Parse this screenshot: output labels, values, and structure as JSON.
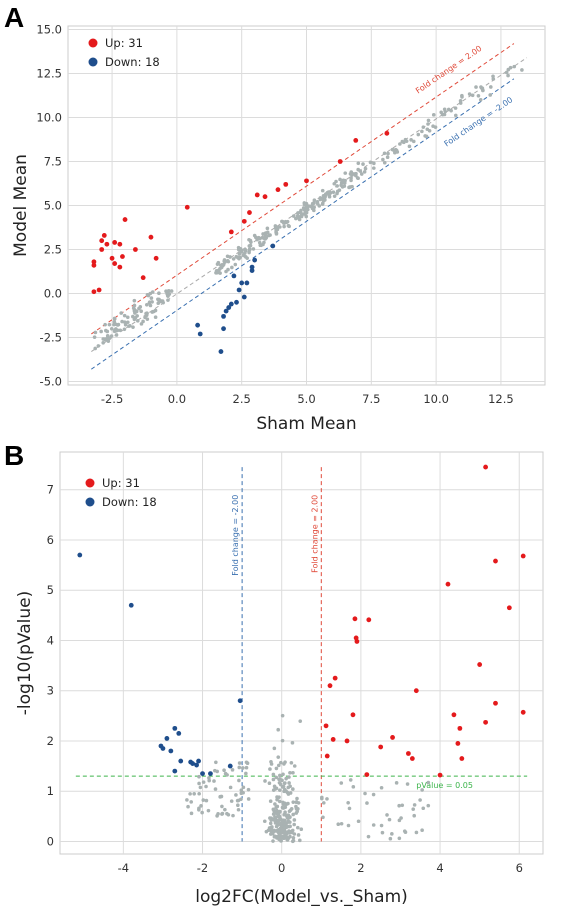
{
  "panels": {
    "a": "A",
    "b": "B"
  },
  "chart_data": [
    {
      "type": "scatter",
      "xlabel": "Sham Mean",
      "ylabel": "Model Mean",
      "xlim": [
        -4.2,
        14.2
      ],
      "ylim": [
        -5.2,
        15.2
      ],
      "xticks": [
        "-2.5",
        "0.0",
        "2.5",
        "5.0",
        "7.5",
        "10.0",
        "12.5"
      ],
      "yticks": [
        "-5.0",
        "-2.5",
        "0.0",
        "2.5",
        "5.0",
        "7.5",
        "10.0",
        "12.5",
        "15.0"
      ],
      "grid": true,
      "legend_position": "top-left",
      "legend": [
        {
          "label": "Up: 31",
          "color": "#e41a1c"
        },
        {
          "label": "Down: 18",
          "color": "#1f4e8c"
        }
      ],
      "lines": [
        {
          "label": "Fold change = 2.00",
          "x": [
            -3.3,
            13.0
          ],
          "y": [
            -2.3,
            14.2
          ],
          "color": "#e04a3a"
        },
        {
          "label": "Fold change = -2.00",
          "x": [
            -3.3,
            13.0
          ],
          "y": [
            -4.3,
            12.2
          ],
          "color": "#3a70b0"
        },
        {
          "label": "",
          "x": [
            -3.3,
            13.5
          ],
          "y": [
            -3.3,
            13.4
          ],
          "color": "#aaaaaa"
        }
      ],
      "series": [
        {
          "name": "Up: 31",
          "color": "#e41a1c",
          "points": [
            [
              -3.2,
              1.8
            ],
            [
              -3.2,
              1.6
            ],
            [
              -3.0,
              0.2
            ],
            [
              -3.2,
              0.1
            ],
            [
              -2.9,
              2.5
            ],
            [
              -2.8,
              3.3
            ],
            [
              -2.9,
              3.0
            ],
            [
              -2.7,
              2.8
            ],
            [
              -2.4,
              2.9
            ],
            [
              -2.2,
              2.8
            ],
            [
              -2.5,
              2.0
            ],
            [
              -2.1,
              2.1
            ],
            [
              -2.2,
              1.5
            ],
            [
              -2.0,
              4.2
            ],
            [
              -1.6,
              2.5
            ],
            [
              -1.3,
              0.9
            ],
            [
              -1.0,
              3.2
            ],
            [
              -0.8,
              2.0
            ],
            [
              -2.4,
              1.7
            ],
            [
              0.4,
              4.9
            ],
            [
              2.1,
              3.5
            ],
            [
              2.6,
              4.1
            ],
            [
              2.8,
              4.6
            ],
            [
              3.1,
              5.6
            ],
            [
              3.4,
              5.5
            ],
            [
              3.9,
              5.9
            ],
            [
              4.2,
              6.2
            ],
            [
              5.0,
              6.4
            ],
            [
              6.3,
              7.5
            ],
            [
              6.9,
              8.7
            ],
            [
              8.1,
              9.1
            ]
          ]
        },
        {
          "name": "Down: 18",
          "color": "#1f4e8c",
          "points": [
            [
              0.8,
              -1.8
            ],
            [
              0.9,
              -2.3
            ],
            [
              1.8,
              -1.3
            ],
            [
              1.9,
              -1.0
            ],
            [
              2.0,
              -0.8
            ],
            [
              1.8,
              -2.0
            ],
            [
              1.7,
              -3.3
            ],
            [
              2.1,
              -0.6
            ],
            [
              2.3,
              -0.5
            ],
            [
              2.4,
              0.2
            ],
            [
              2.5,
              0.6
            ],
            [
              2.6,
              -0.2
            ],
            [
              2.7,
              0.6
            ],
            [
              2.9,
              1.3
            ],
            [
              2.9,
              1.5
            ],
            [
              3.0,
              1.9
            ],
            [
              3.7,
              2.7
            ],
            [
              2.2,
              1.0
            ]
          ]
        }
      ],
      "gray_color": "#a9b2b2"
    },
    {
      "type": "scatter",
      "xlabel": "log2FC(Model_vs._Sham)",
      "ylabel": "-log10(pValue)",
      "xlim": [
        -5.6,
        6.6
      ],
      "ylim": [
        -0.25,
        7.75
      ],
      "xticks": [
        "-4",
        "-2",
        "0",
        "2",
        "4",
        "6"
      ],
      "yticks": [
        "0",
        "1",
        "2",
        "3",
        "4",
        "5",
        "6",
        "7"
      ],
      "grid": true,
      "legend_position": "top-left",
      "legend": [
        {
          "label": "Up: 31",
          "color": "#e41a1c"
        },
        {
          "label": "Down: 18",
          "color": "#1f4e8c"
        }
      ],
      "vlines": [
        {
          "label": "Fold change = -2.00",
          "x": -1.0,
          "color": "#3a70b0"
        },
        {
          "label": "Fold change = 2.00",
          "x": 1.0,
          "color": "#e04a3a"
        }
      ],
      "hline": {
        "label": "pValue = 0.05",
        "y": 1.3,
        "color": "#3cb44b"
      },
      "series": [
        {
          "name": "Up: 31",
          "color": "#e41a1c",
          "points": [
            [
              5.15,
              7.45
            ],
            [
              6.1,
              5.68
            ],
            [
              5.4,
              5.58
            ],
            [
              4.2,
              5.12
            ],
            [
              5.75,
              4.65
            ],
            [
              1.85,
              4.43
            ],
            [
              2.2,
              4.41
            ],
            [
              1.88,
              4.05
            ],
            [
              1.9,
              3.98
            ],
            [
              1.35,
              3.25
            ],
            [
              1.22,
              3.1
            ],
            [
              3.4,
              3.0
            ],
            [
              5.0,
              3.52
            ],
            [
              5.4,
              2.75
            ],
            [
              6.1,
              2.57
            ],
            [
              1.8,
              2.52
            ],
            [
              4.35,
              2.52
            ],
            [
              5.15,
              2.37
            ],
            [
              1.12,
              2.3
            ],
            [
              3.2,
              1.75
            ],
            [
              3.3,
              1.65
            ],
            [
              4.5,
              2.25
            ],
            [
              1.3,
              2.03
            ],
            [
              1.65,
              2.0
            ],
            [
              2.5,
              1.88
            ],
            [
              2.8,
              2.07
            ],
            [
              4.45,
              1.95
            ],
            [
              1.15,
              1.7
            ],
            [
              4.55,
              1.65
            ],
            [
              2.15,
              1.33
            ],
            [
              4.0,
              1.32
            ]
          ]
        },
        {
          "name": "Down: 18",
          "color": "#1f4e8c",
          "points": [
            [
              -5.1,
              5.7
            ],
            [
              -3.8,
              4.7
            ],
            [
              -1.05,
              2.8
            ],
            [
              -2.7,
              2.25
            ],
            [
              -2.6,
              2.15
            ],
            [
              -2.9,
              2.05
            ],
            [
              -3.05,
              1.9
            ],
            [
              -3.0,
              1.85
            ],
            [
              -2.8,
              1.8
            ],
            [
              -2.55,
              1.6
            ],
            [
              -2.3,
              1.58
            ],
            [
              -2.1,
              1.6
            ],
            [
              -2.15,
              1.52
            ],
            [
              -2.25,
              1.55
            ],
            [
              -2.7,
              1.4
            ],
            [
              -1.3,
              1.5
            ],
            [
              -2.0,
              1.35
            ],
            [
              -1.8,
              1.35
            ]
          ]
        }
      ],
      "gray_color": "#a9b2b2"
    }
  ]
}
